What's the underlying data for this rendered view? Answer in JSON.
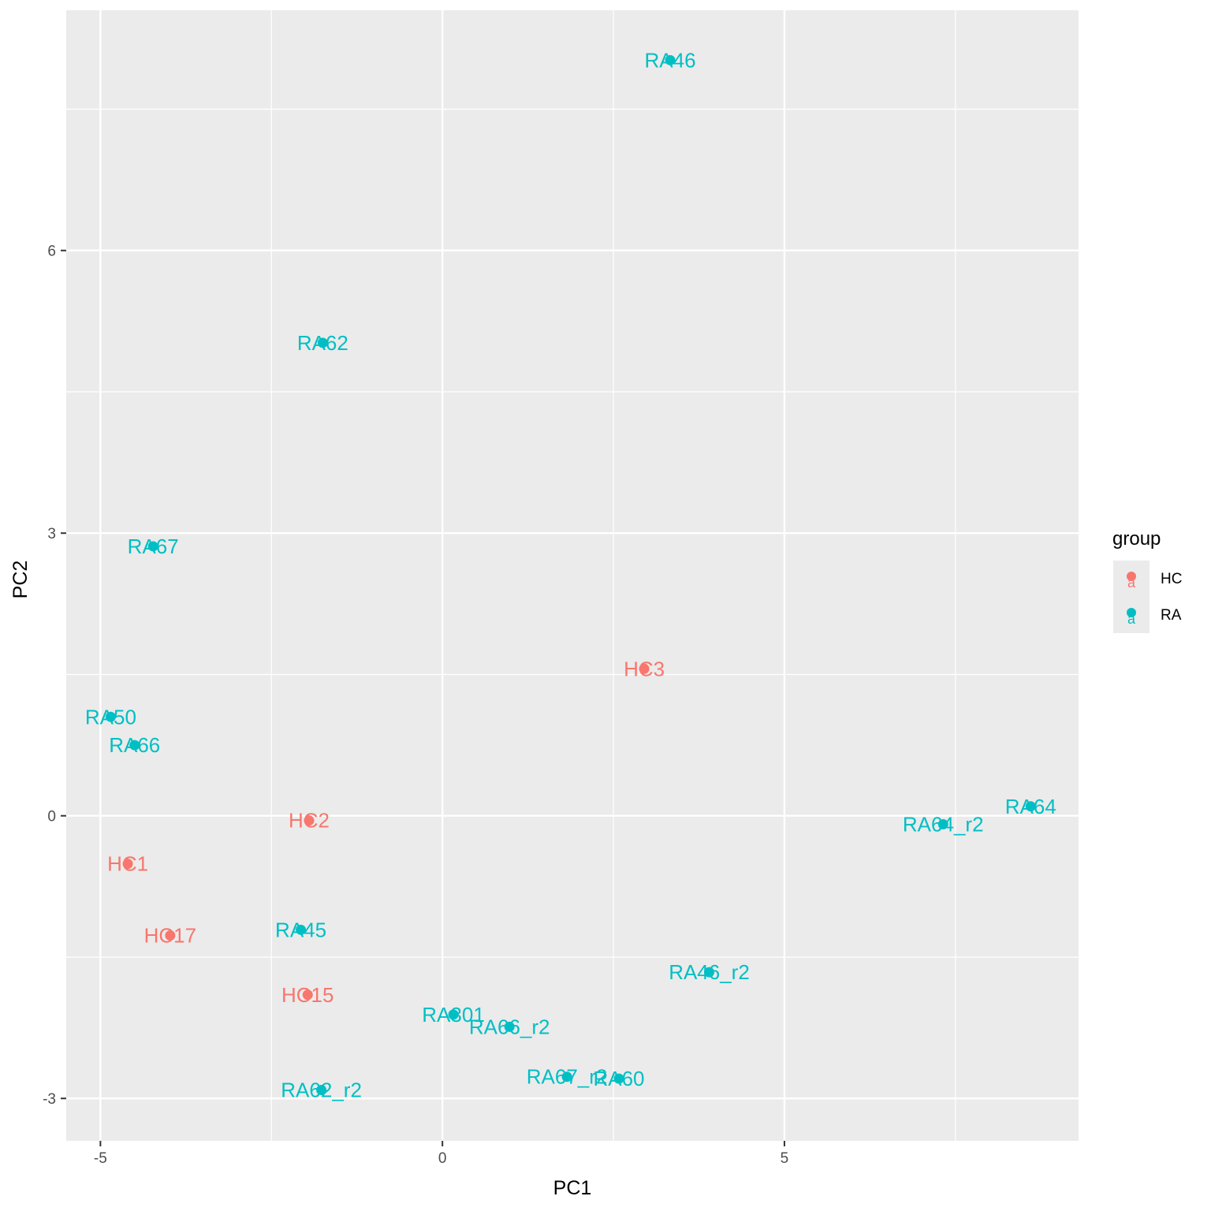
{
  "chart_data": {
    "type": "scatter",
    "xlabel": "PC1",
    "ylabel": "PC2",
    "xlim": [
      -5.5,
      9.3
    ],
    "ylim": [
      -3.45,
      8.55
    ],
    "x_ticks": [
      -5,
      0,
      5
    ],
    "y_ticks": [
      -3,
      0,
      3,
      6
    ],
    "grid": true,
    "legend": {
      "title": "group",
      "position": "right",
      "glyph": "a",
      "entries": [
        {
          "name": "HC",
          "color": "#F8766D"
        },
        {
          "name": "RA",
          "color": "#00BFC4"
        }
      ]
    },
    "series": [
      {
        "name": "HC",
        "color": "#F8766D",
        "points": [
          {
            "label": "HC3",
            "x": 2.95,
            "y": 1.56
          },
          {
            "label": "HC2",
            "x": -1.95,
            "y": -0.05
          },
          {
            "label": "HC1",
            "x": -4.6,
            "y": -0.51
          },
          {
            "label": "HC17",
            "x": -3.98,
            "y": -1.27
          },
          {
            "label": "HC15",
            "x": -1.97,
            "y": -1.9
          }
        ]
      },
      {
        "name": "RA",
        "color": "#00BFC4",
        "points": [
          {
            "label": "RA46",
            "x": 3.33,
            "y": 8.02
          },
          {
            "label": "RA62",
            "x": -1.75,
            "y": 5.02
          },
          {
            "label": "RA67",
            "x": -4.23,
            "y": 2.86
          },
          {
            "label": "RA50",
            "x": -4.85,
            "y": 1.05
          },
          {
            "label": "RA66",
            "x": -4.5,
            "y": 0.75
          },
          {
            "label": "RA64",
            "x": 8.6,
            "y": 0.1
          },
          {
            "label": "RA64_r2",
            "x": 7.32,
            "y": -0.09
          },
          {
            "label": "RA45",
            "x": -2.07,
            "y": -1.21
          },
          {
            "label": "RA46_r2",
            "x": 3.9,
            "y": -1.66
          },
          {
            "label": "RA301",
            "x": 0.16,
            "y": -2.11
          },
          {
            "label": "RA66_r2",
            "x": 0.98,
            "y": -2.24
          },
          {
            "label": "RA67_r2",
            "x": 1.82,
            "y": -2.77
          },
          {
            "label": "RA60",
            "x": 2.58,
            "y": -2.79
          },
          {
            "label": "RA62_r2",
            "x": -1.77,
            "y": -2.91
          }
        ]
      }
    ]
  }
}
